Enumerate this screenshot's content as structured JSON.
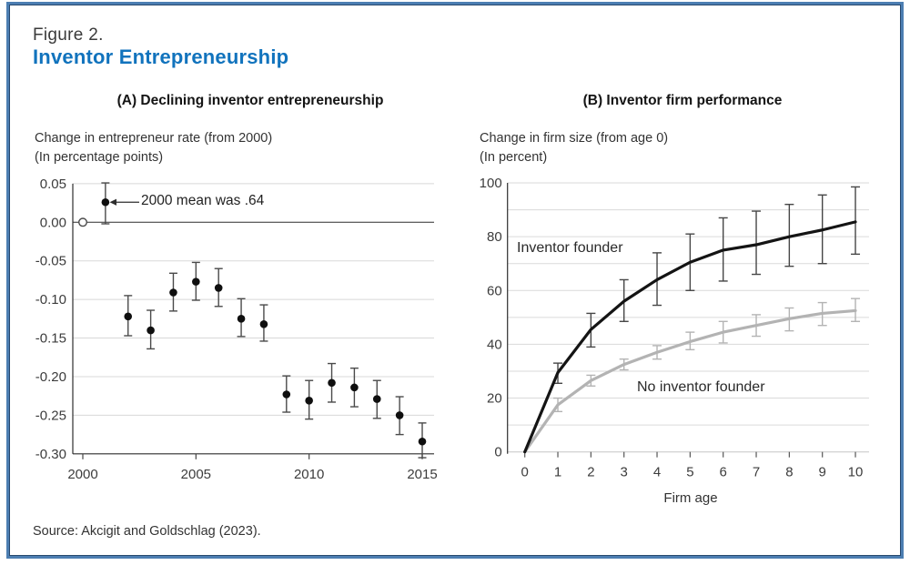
{
  "figure": {
    "label": "Figure 2.",
    "title": "Inventor Entrepreneurship",
    "source": "Source: Akcigit and Goldschlag (2023).",
    "accent_blue": "#1173bd",
    "border_blue": "#4c7eb2"
  },
  "chart_data": [
    {
      "type": "scatter",
      "panel": "A",
      "title": "(A) Declining inventor entrepreneurship",
      "ylabel_line1": "Change in entrepreneur rate (from 2000)",
      "ylabel_line2": "(In percentage points)",
      "annotation": "2000 mean was .64",
      "open_marker_year": 2000,
      "x": [
        2000,
        2001,
        2002,
        2003,
        2004,
        2005,
        2006,
        2007,
        2008,
        2009,
        2010,
        2011,
        2012,
        2013,
        2014,
        2015
      ],
      "y": [
        0,
        0.026,
        -0.122,
        -0.14,
        -0.091,
        -0.077,
        -0.085,
        -0.125,
        -0.132,
        -0.223,
        -0.231,
        -0.208,
        -0.214,
        -0.229,
        -0.25,
        -0.284
      ],
      "lo": [
        null,
        -0.002,
        -0.147,
        -0.164,
        -0.115,
        -0.101,
        -0.109,
        -0.148,
        -0.154,
        -0.246,
        -0.255,
        -0.233,
        -0.239,
        -0.254,
        -0.275,
        -0.305
      ],
      "hi": [
        null,
        0.051,
        -0.095,
        -0.114,
        -0.066,
        -0.052,
        -0.06,
        -0.099,
        -0.107,
        -0.199,
        -0.205,
        -0.183,
        -0.189,
        -0.205,
        -0.226,
        -0.26
      ],
      "ylim": [
        -0.3,
        0.05
      ],
      "ytick_values": [
        0.05,
        0.0,
        -0.05,
        -0.1,
        -0.15,
        -0.2,
        -0.25,
        -0.3
      ],
      "ytick_labels": [
        "0.05",
        "0.00",
        "-0.05",
        "-0.10",
        "-0.15",
        "-0.20",
        "-0.25",
        "-0.30"
      ],
      "xtick_values": [
        2000,
        2005,
        2010,
        2015
      ],
      "xtick_labels": [
        "2000",
        "2005",
        "2010",
        "2015"
      ],
      "grid": "horizontal",
      "zero_line": true,
      "point_color": "#0f0f0f",
      "errorbar_color": "#4a4a4a"
    },
    {
      "type": "line",
      "panel": "B",
      "title": "(B) Inventor firm performance",
      "ylabel_line1": "Change in firm size (from age 0)",
      "ylabel_line2": "(In percent)",
      "xlabel": "Firm age",
      "x": [
        0,
        1,
        2,
        3,
        4,
        5,
        6,
        7,
        8,
        9,
        10
      ],
      "series": [
        {
          "name": "Inventor founder",
          "color": "#141414",
          "errorbar_color": "#464646",
          "values": [
            0,
            29.5,
            45.5,
            56,
            64,
            70.5,
            75,
            77,
            80,
            82.5,
            85.5
          ],
          "lo": [
            null,
            25.5,
            39,
            48.5,
            54.5,
            60,
            63.5,
            66,
            69,
            70,
            73.5
          ],
          "hi": [
            null,
            33,
            51.5,
            64,
            74,
            81,
            87,
            89.5,
            92,
            95.5,
            98.5
          ]
        },
        {
          "name": "No inventor founder",
          "color": "#b3b3b3",
          "errorbar_color": "#b3b3b3",
          "values": [
            0,
            17.5,
            26.5,
            32.5,
            37,
            41,
            44.5,
            47,
            49.5,
            51.5,
            52.5
          ],
          "lo": [
            null,
            15,
            24.5,
            30.5,
            34.5,
            38,
            40.5,
            43,
            45,
            47,
            48.5
          ],
          "hi": [
            null,
            20,
            28.5,
            34.5,
            39.5,
            44.5,
            48.5,
            51,
            53.5,
            55.5,
            57
          ]
        }
      ],
      "ylim": [
        0,
        100
      ],
      "ytick_values": [
        0,
        20,
        40,
        60,
        80,
        100
      ],
      "ytick_labels": [
        "0",
        "20",
        "40",
        "60",
        "80",
        "100"
      ],
      "minor_grid_step": 10,
      "xtick_values": [
        0,
        1,
        2,
        3,
        4,
        5,
        6,
        7,
        8,
        9,
        10
      ],
      "xtick_labels": [
        "0",
        "1",
        "2",
        "3",
        "4",
        "5",
        "6",
        "7",
        "8",
        "9",
        "10"
      ],
      "grid": "horizontal",
      "legend_position": "inline-labels"
    }
  ]
}
